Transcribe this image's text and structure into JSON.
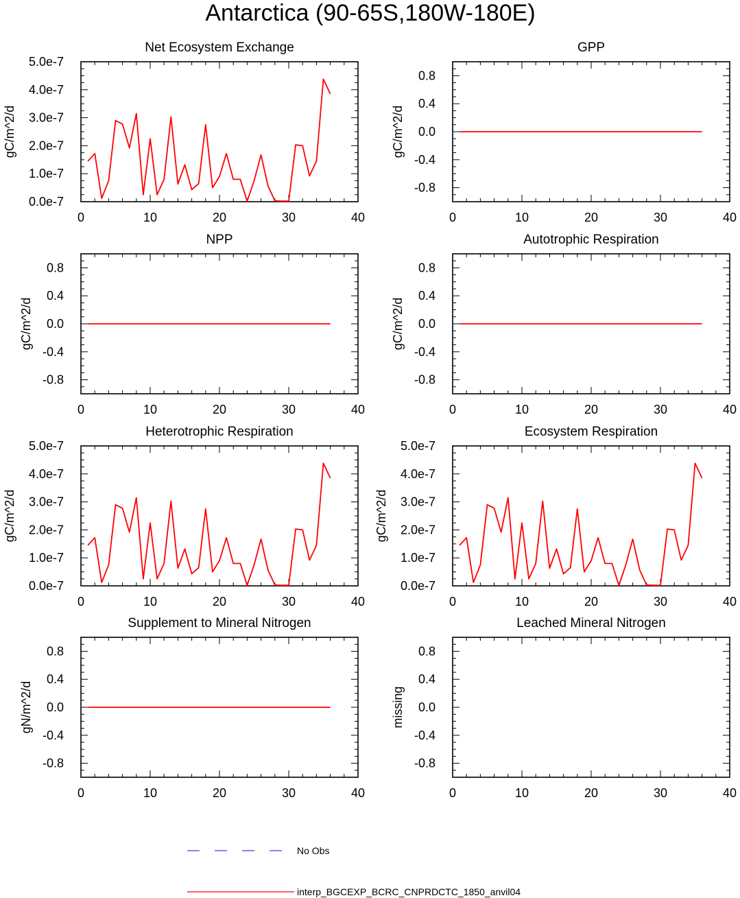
{
  "title": "Antarctica (90-65S,180W-180E)",
  "colors": {
    "model_line": "#ff0000",
    "obs_line": "#3a3aff",
    "axes": "#000000"
  },
  "legend": {
    "placement": "bottom-center",
    "items": [
      {
        "label": "No Obs",
        "color": "#3a3aff",
        "style": "dashed"
      },
      {
        "label": "interp_BGCEXP_BCRC_CNPRDCTC_1850_anvil04",
        "color": "#ff0000",
        "style": "solid"
      }
    ]
  },
  "chart_data": [
    {
      "type": "line",
      "title": "Net Ecosystem Exchange",
      "ylabel": "gC/m^2/d",
      "xlim": [
        0,
        40
      ],
      "ylim": [
        0,
        5e-07
      ],
      "xticks": [
        0,
        10,
        20,
        30,
        40
      ],
      "yticks": [
        0,
        1e-07,
        2e-07,
        3e-07,
        4e-07,
        5e-07
      ],
      "ytick_labels": [
        "0.0e-7",
        "1.0e-7",
        "2.0e-7",
        "3.0e-7",
        "4.0e-7",
        "5.0e-7"
      ],
      "series": [
        {
          "x": [
            1,
            2,
            3,
            4,
            5,
            6,
            7,
            8,
            9,
            10,
            11,
            12,
            13,
            14,
            15,
            16,
            17,
            18,
            19,
            20,
            21,
            22,
            23,
            24,
            25,
            26,
            27,
            28,
            29,
            30,
            31,
            32,
            33,
            34,
            35,
            36
          ],
          "values": [
            1.45e-07,
            1.72e-07,
            1.2e-08,
            7.5e-08,
            2.9e-07,
            2.77e-07,
            1.92e-07,
            3.15e-07,
            2.5e-08,
            2.25e-07,
            2.5e-08,
            8e-08,
            3.03e-07,
            6.3e-08,
            1.32e-07,
            4.3e-08,
            6.5e-08,
            2.75e-07,
            5e-08,
            9e-08,
            1.72e-07,
            8e-08,
            8e-08,
            2e-09,
            7.5e-08,
            1.67e-07,
            5.7e-08,
            3e-09,
            2e-09,
            2e-09,
            2.03e-07,
            2e-07,
            9.2e-08,
            1.45e-07,
            4.38e-07,
            3.85e-07
          ]
        }
      ]
    },
    {
      "type": "line",
      "title": "GPP",
      "ylabel": "gC/m^2/d",
      "xlim": [
        0,
        40
      ],
      "ylim": [
        -1,
        1
      ],
      "xticks": [
        0,
        10,
        20,
        30,
        40
      ],
      "yticks": [
        -0.8,
        -0.4,
        0,
        0.4,
        0.8
      ],
      "ytick_labels": [
        "-0.8",
        "-0.4",
        "0.0",
        "0.4",
        "0.8"
      ],
      "series": [
        {
          "x": [
            1,
            2,
            3,
            4,
            5,
            6,
            7,
            8,
            9,
            10,
            11,
            12,
            13,
            14,
            15,
            16,
            17,
            18,
            19,
            20,
            21,
            22,
            23,
            24,
            25,
            26,
            27,
            28,
            29,
            30,
            31,
            32,
            33,
            34,
            35,
            36
          ],
          "values": [
            0,
            0,
            0,
            0,
            0,
            0,
            0,
            0,
            0,
            0,
            0,
            0,
            0,
            0,
            0,
            0,
            0,
            0,
            0,
            0,
            0,
            0,
            0,
            0,
            0,
            0,
            0,
            0,
            0,
            0,
            0,
            0,
            0,
            0,
            0,
            0
          ]
        }
      ]
    },
    {
      "type": "line",
      "title": "NPP",
      "ylabel": "gC/m^2/d",
      "xlim": [
        0,
        40
      ],
      "ylim": [
        -1,
        1
      ],
      "xticks": [
        0,
        10,
        20,
        30,
        40
      ],
      "yticks": [
        -0.8,
        -0.4,
        0,
        0.4,
        0.8
      ],
      "ytick_labels": [
        "-0.8",
        "-0.4",
        "0.0",
        "0.4",
        "0.8"
      ],
      "series": [
        {
          "x": [
            1,
            2,
            3,
            4,
            5,
            6,
            7,
            8,
            9,
            10,
            11,
            12,
            13,
            14,
            15,
            16,
            17,
            18,
            19,
            20,
            21,
            22,
            23,
            24,
            25,
            26,
            27,
            28,
            29,
            30,
            31,
            32,
            33,
            34,
            35,
            36
          ],
          "values": [
            0,
            0,
            0,
            0,
            0,
            0,
            0,
            0,
            0,
            0,
            0,
            0,
            0,
            0,
            0,
            0,
            0,
            0,
            0,
            0,
            0,
            0,
            0,
            0,
            0,
            0,
            0,
            0,
            0,
            0,
            0,
            0,
            0,
            0,
            0,
            0
          ]
        }
      ]
    },
    {
      "type": "line",
      "title": "Autotrophic Respiration",
      "ylabel": "gC/m^2/d",
      "xlim": [
        0,
        40
      ],
      "ylim": [
        -1,
        1
      ],
      "xticks": [
        0,
        10,
        20,
        30,
        40
      ],
      "yticks": [
        -0.8,
        -0.4,
        0,
        0.4,
        0.8
      ],
      "ytick_labels": [
        "-0.8",
        "-0.4",
        "0.0",
        "0.4",
        "0.8"
      ],
      "series": [
        {
          "x": [
            1,
            2,
            3,
            4,
            5,
            6,
            7,
            8,
            9,
            10,
            11,
            12,
            13,
            14,
            15,
            16,
            17,
            18,
            19,
            20,
            21,
            22,
            23,
            24,
            25,
            26,
            27,
            28,
            29,
            30,
            31,
            32,
            33,
            34,
            35,
            36
          ],
          "values": [
            0,
            0,
            0,
            0,
            0,
            0,
            0,
            0,
            0,
            0,
            0,
            0,
            0,
            0,
            0,
            0,
            0,
            0,
            0,
            0,
            0,
            0,
            0,
            0,
            0,
            0,
            0,
            0,
            0,
            0,
            0,
            0,
            0,
            0,
            0,
            0
          ]
        }
      ]
    },
    {
      "type": "line",
      "title": "Heterotrophic Respiration",
      "ylabel": "gC/m^2/d",
      "xlim": [
        0,
        40
      ],
      "ylim": [
        0,
        5e-07
      ],
      "xticks": [
        0,
        10,
        20,
        30,
        40
      ],
      "yticks": [
        0,
        1e-07,
        2e-07,
        3e-07,
        4e-07,
        5e-07
      ],
      "ytick_labels": [
        "0.0e-7",
        "1.0e-7",
        "2.0e-7",
        "3.0e-7",
        "4.0e-7",
        "5.0e-7"
      ],
      "series": [
        {
          "x": [
            1,
            2,
            3,
            4,
            5,
            6,
            7,
            8,
            9,
            10,
            11,
            12,
            13,
            14,
            15,
            16,
            17,
            18,
            19,
            20,
            21,
            22,
            23,
            24,
            25,
            26,
            27,
            28,
            29,
            30,
            31,
            32,
            33,
            34,
            35,
            36
          ],
          "values": [
            1.45e-07,
            1.72e-07,
            1.2e-08,
            7.5e-08,
            2.9e-07,
            2.77e-07,
            1.92e-07,
            3.15e-07,
            2.5e-08,
            2.25e-07,
            2.5e-08,
            8e-08,
            3.03e-07,
            6.3e-08,
            1.32e-07,
            4.3e-08,
            6.5e-08,
            2.75e-07,
            5e-08,
            9e-08,
            1.72e-07,
            8e-08,
            8e-08,
            2e-09,
            7.5e-08,
            1.67e-07,
            5.7e-08,
            3e-09,
            2e-09,
            2e-09,
            2.03e-07,
            2e-07,
            9.2e-08,
            1.45e-07,
            4.38e-07,
            3.85e-07
          ]
        }
      ]
    },
    {
      "type": "line",
      "title": "Ecosystem Respiration",
      "ylabel": "gC/m^2/d",
      "xlim": [
        0,
        40
      ],
      "ylim": [
        0,
        5e-07
      ],
      "xticks": [
        0,
        10,
        20,
        30,
        40
      ],
      "yticks": [
        0,
        1e-07,
        2e-07,
        3e-07,
        4e-07,
        5e-07
      ],
      "ytick_labels": [
        "0.0e-7",
        "1.0e-7",
        "2.0e-7",
        "3.0e-7",
        "4.0e-7",
        "5.0e-7"
      ],
      "series": [
        {
          "x": [
            1,
            2,
            3,
            4,
            5,
            6,
            7,
            8,
            9,
            10,
            11,
            12,
            13,
            14,
            15,
            16,
            17,
            18,
            19,
            20,
            21,
            22,
            23,
            24,
            25,
            26,
            27,
            28,
            29,
            30,
            31,
            32,
            33,
            34,
            35,
            36
          ],
          "values": [
            1.45e-07,
            1.72e-07,
            1.2e-08,
            7.5e-08,
            2.9e-07,
            2.77e-07,
            1.92e-07,
            3.15e-07,
            2.5e-08,
            2.25e-07,
            2.5e-08,
            8e-08,
            3.03e-07,
            6.3e-08,
            1.32e-07,
            4.3e-08,
            6.5e-08,
            2.75e-07,
            5e-08,
            9e-08,
            1.72e-07,
            8e-08,
            8e-08,
            2e-09,
            7.5e-08,
            1.67e-07,
            5.7e-08,
            3e-09,
            2e-09,
            2e-09,
            2.03e-07,
            2e-07,
            9.2e-08,
            1.45e-07,
            4.38e-07,
            3.85e-07
          ]
        }
      ]
    },
    {
      "type": "line",
      "title": "Supplement to Mineral Nitrogen",
      "ylabel": "gN/m^2/d",
      "xlim": [
        0,
        40
      ],
      "ylim": [
        -1,
        1
      ],
      "xticks": [
        0,
        10,
        20,
        30,
        40
      ],
      "yticks": [
        -0.8,
        -0.4,
        0,
        0.4,
        0.8
      ],
      "ytick_labels": [
        "-0.8",
        "-0.4",
        "0.0",
        "0.4",
        "0.8"
      ],
      "series": [
        {
          "x": [
            1,
            2,
            3,
            4,
            5,
            6,
            7,
            8,
            9,
            10,
            11,
            12,
            13,
            14,
            15,
            16,
            17,
            18,
            19,
            20,
            21,
            22,
            23,
            24,
            25,
            26,
            27,
            28,
            29,
            30,
            31,
            32,
            33,
            34,
            35,
            36
          ],
          "values": [
            0,
            0,
            0,
            0,
            0,
            0,
            0,
            0,
            0,
            0,
            0,
            0,
            0,
            0,
            0,
            0,
            0,
            0,
            0,
            0,
            0,
            0,
            0,
            0,
            0,
            0,
            0,
            0,
            0,
            0,
            0,
            0,
            0,
            0,
            0,
            0
          ]
        }
      ]
    },
    {
      "type": "line",
      "title": "Leached Mineral Nitrogen",
      "ylabel": "missing",
      "xlim": [
        0,
        40
      ],
      "ylim": [
        -1,
        1
      ],
      "xticks": [
        0,
        10,
        20,
        30,
        40
      ],
      "yticks": [
        -0.8,
        -0.4,
        0,
        0.4,
        0.8
      ],
      "ytick_labels": [
        "-0.8",
        "-0.4",
        "0.0",
        "0.4",
        "0.8"
      ],
      "series": []
    }
  ]
}
